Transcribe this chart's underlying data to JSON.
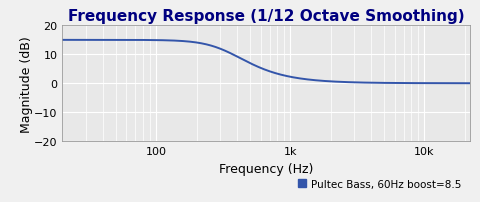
{
  "title": "Frequency Response (1/12 Octave Smoothing)",
  "xlabel": "Frequency (Hz)",
  "ylabel": "Magnitude (dB)",
  "ylim": [
    -20,
    20
  ],
  "xlim": [
    20,
    22000
  ],
  "yticks": [
    -20,
    -10,
    0,
    10,
    20
  ],
  "xtick_labels": [
    "100",
    "1k",
    "10k"
  ],
  "xtick_positions": [
    100,
    1000,
    10000
  ],
  "line_color": "#3355aa",
  "line_width": 1.4,
  "legend_label": "Pultec Bass, 60Hz boost=8.5",
  "legend_color": "#3355aa",
  "plot_bg_color": "#e8e8e8",
  "fig_bg_color": "#f0f0f0",
  "grid_color": "#ffffff",
  "title_color": "#000080",
  "title_fontsize": 11,
  "label_fontsize": 9,
  "tick_fontsize": 8,
  "boost_db": 15.0,
  "f_knee": 350.0,
  "rolloff_order": 1.8
}
